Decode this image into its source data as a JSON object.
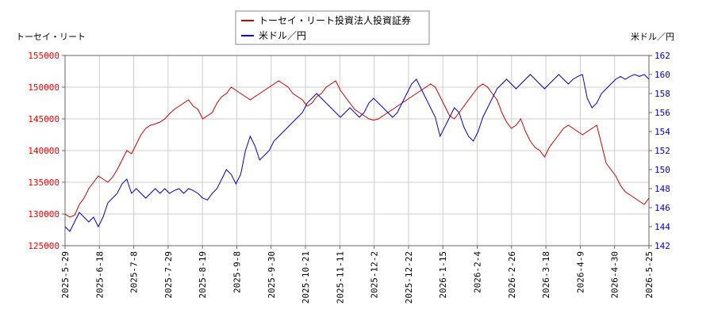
{
  "chart_data": {
    "type": "line",
    "left_axis_label": "トーセイ・リート",
    "right_axis_label": "米ドル／円",
    "x_tick_labels": [
      "2025-5-29",
      "2025-6-18",
      "2025-7-8",
      "2025-7-29",
      "2025-8-19",
      "2025-9-8",
      "2025-9-30",
      "2025-10-21",
      "2025-11-11",
      "2025-12-2",
      "2025-12-22",
      "2026-1-15",
      "2026-2-4",
      "2026-2-26",
      "2026-3-18",
      "2026-4-9",
      "2026-4-30",
      "2026-5-25"
    ],
    "y_left": {
      "min": 125000,
      "max": 155000,
      "ticks": [
        125000,
        130000,
        135000,
        140000,
        145000,
        150000,
        155000
      ],
      "color": "#ff0000"
    },
    "y_right": {
      "min": 142,
      "max": 162,
      "ticks": [
        142,
        144,
        146,
        148,
        150,
        152,
        154,
        156,
        158,
        160,
        162
      ],
      "color": "#0000cc"
    },
    "grid": true,
    "legend_position": "top-center",
    "series": [
      {
        "name": "トーセイ・リート投資法人投資証券",
        "axis": "left",
        "color": "#cc0000",
        "values": [
          130000,
          129500,
          129800,
          131500,
          132500,
          134000,
          135000,
          136000,
          135500,
          135000,
          135800,
          137000,
          138500,
          140000,
          139500,
          141000,
          142500,
          143500,
          144000,
          144200,
          144500,
          145000,
          145800,
          146500,
          147000,
          147500,
          148000,
          147000,
          146500,
          145000,
          145500,
          146000,
          147500,
          148500,
          149000,
          150000,
          149500,
          149000,
          148500,
          148000,
          148500,
          149000,
          149500,
          150000,
          150500,
          151000,
          150500,
          150000,
          149000,
          148500,
          148000,
          147000,
          147500,
          148500,
          149000,
          150000,
          150500,
          151000,
          149500,
          148500,
          147500,
          146500,
          146000,
          145500,
          145000,
          144800,
          145000,
          145500,
          146000,
          146500,
          147000,
          147500,
          148000,
          148500,
          149000,
          149500,
          150000,
          150500,
          150000,
          148500,
          147000,
          145500,
          145000,
          146000,
          147000,
          148000,
          149000,
          150000,
          150500,
          150000,
          149000,
          148000,
          146000,
          144500,
          143500,
          144000,
          145000,
          143000,
          141500,
          140500,
          140000,
          139000,
          140500,
          141500,
          142500,
          143500,
          144000,
          143500,
          143000,
          142500,
          143000,
          143500,
          144000,
          141000,
          138000,
          137000,
          136000,
          134500,
          133500,
          133000,
          132500,
          132000,
          131500,
          132500
        ]
      },
      {
        "name": "米ドル／円",
        "axis": "right",
        "color": "#0000cc",
        "values": [
          144.0,
          143.5,
          144.5,
          145.5,
          145.0,
          144.5,
          145.0,
          144.0,
          145.0,
          146.5,
          147.0,
          147.5,
          148.5,
          149.0,
          147.5,
          148.0,
          147.5,
          147.0,
          147.5,
          148.0,
          147.5,
          148.0,
          147.5,
          147.8,
          148.0,
          147.5,
          148.0,
          147.8,
          147.5,
          147.0,
          146.8,
          147.5,
          148.0,
          149.0,
          150.0,
          149.5,
          148.5,
          149.5,
          152.0,
          153.5,
          152.5,
          151.0,
          151.5,
          152.0,
          153.0,
          153.5,
          154.0,
          154.5,
          155.0,
          155.5,
          156.0,
          157.0,
          157.5,
          158.0,
          157.5,
          157.0,
          156.5,
          156.0,
          155.5,
          156.0,
          156.5,
          156.0,
          155.5,
          156.0,
          157.0,
          157.5,
          157.0,
          156.5,
          156.0,
          155.5,
          156.0,
          157.0,
          158.0,
          159.0,
          159.5,
          158.5,
          157.5,
          156.5,
          155.5,
          153.5,
          154.5,
          155.5,
          156.5,
          156.0,
          154.5,
          153.5,
          153.0,
          154.0,
          155.5,
          156.5,
          157.5,
          158.5,
          159.0,
          159.5,
          159.0,
          158.5,
          159.0,
          159.5,
          160.0,
          159.5,
          159.0,
          158.5,
          159.0,
          159.5,
          160.0,
          159.5,
          159.0,
          159.5,
          159.8,
          160.0,
          157.5,
          156.5,
          157.0,
          158.0,
          158.5,
          159.0,
          159.5,
          159.8,
          159.5,
          159.8,
          160.0,
          159.8,
          160.0,
          159.5
        ]
      }
    ]
  }
}
